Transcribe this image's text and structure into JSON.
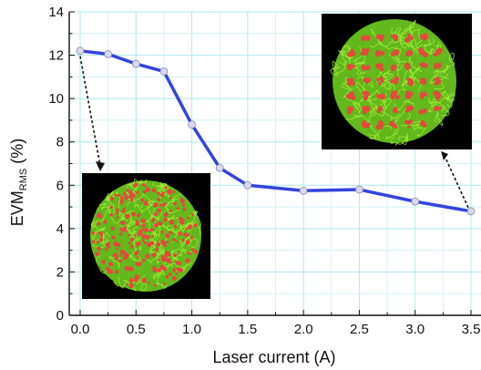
{
  "chart_data": {
    "type": "line",
    "xlabel": "Laser current (A)",
    "ylabel_main": "EVM",
    "ylabel_sub": "RMS",
    "ylabel_unit": " (%)",
    "xlim": [
      -0.05,
      3.5
    ],
    "ylim": [
      0,
      14
    ],
    "x_ticks": [
      0.0,
      0.5,
      1.0,
      1.5,
      2.0,
      2.5,
      3.0,
      3.5
    ],
    "x_tick_labels": [
      "0.0",
      "0.5",
      "1.0",
      "1.5",
      "2.0",
      "2.5",
      "3.0",
      "3.5"
    ],
    "y_ticks": [
      0,
      2,
      4,
      6,
      8,
      10,
      12,
      14
    ],
    "y_tick_labels": [
      "0",
      "2",
      "4",
      "6",
      "8",
      "10",
      "12",
      "14"
    ],
    "grid": true,
    "series": [
      {
        "x": [
          0.0,
          0.25,
          0.5,
          0.75,
          1.0,
          1.25,
          1.5,
          2.0,
          2.5,
          3.0,
          3.5
        ],
        "y": [
          12.2,
          12.05,
          11.6,
          11.25,
          8.8,
          6.8,
          6.0,
          5.75,
          5.8,
          5.25,
          4.8
        ],
        "color": "#3344dd",
        "marker_color": "#d8d8f0"
      }
    ],
    "insets": [
      {
        "name": "constellation-low-current",
        "points_at": {
          "x": 0.0,
          "y": 12.2
        },
        "background": "#000000",
        "noise_color": "#7fd824",
        "symbol_color": "#e8483a",
        "clustered": false
      },
      {
        "name": "constellation-high-current",
        "points_at": {
          "x": 3.5,
          "y": 4.8
        },
        "background": "#000000",
        "noise_color": "#7fd824",
        "symbol_color": "#e8483a",
        "clustered": true
      }
    ]
  }
}
